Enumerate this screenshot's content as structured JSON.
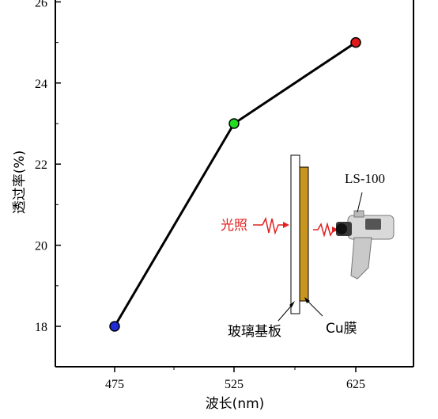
{
  "chart_data": {
    "type": "line",
    "x": [
      475,
      525,
      625
    ],
    "categories": [
      "475",
      "525",
      "625"
    ],
    "series": [
      {
        "values": [
          18,
          23,
          25
        ],
        "point_colors": [
          "#1f2bd6",
          "#22dd22",
          "#e01818"
        ],
        "line_color": "#000000"
      }
    ],
    "xlabel": "波长(nm)",
    "ylabel": "透过率(%)",
    "xlim": [
      450,
      675
    ],
    "ylim": [
      17,
      26
    ],
    "x_ticks": [
      475,
      525,
      625
    ],
    "y_ticks": [
      18,
      20,
      22,
      24,
      26
    ],
    "y_tick_labels": [
      "18",
      "20",
      "22",
      "24",
      "26"
    ],
    "grid": false,
    "inset": {
      "light_label": "光照",
      "substrate_label": "玻璃基板",
      "film_label": "Cu膜",
      "meter_label": "LS-100",
      "light_color": "#e02020",
      "film_color": "#c8961e"
    }
  }
}
